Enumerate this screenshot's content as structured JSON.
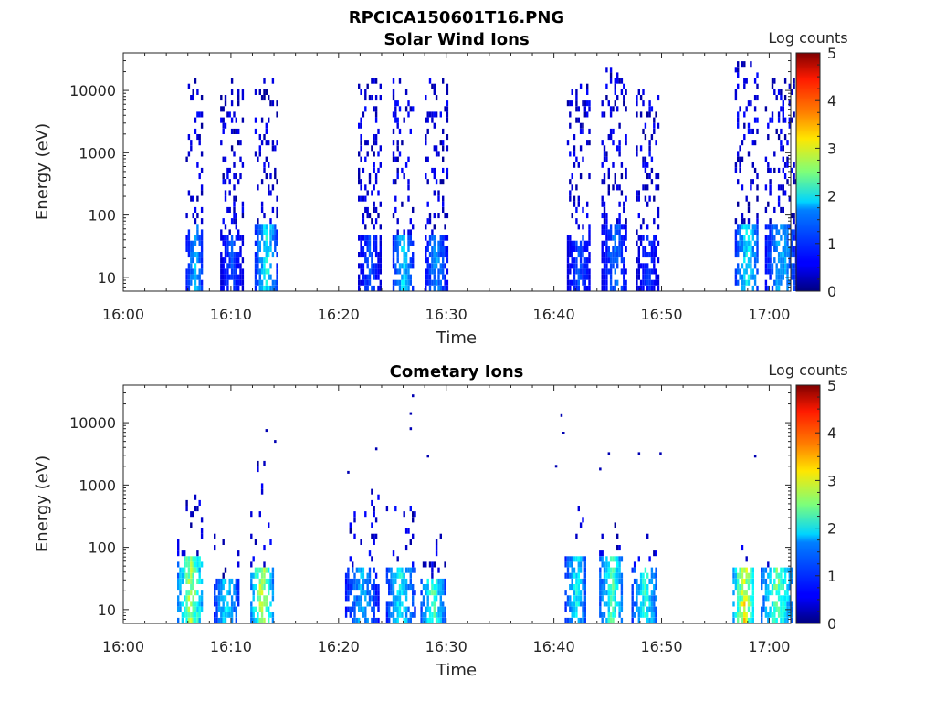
{
  "figure": {
    "title": "RPCICA150601T16.PNG"
  },
  "colors": {
    "colormap": "jet",
    "background": "#ffffff",
    "axis": "#262626"
  },
  "chart_data": [
    {
      "type": "heatmap",
      "title": "Solar Wind Ions",
      "xlabel": "Time",
      "ylabel": "Energy (eV)",
      "yscale": "log",
      "xlim": [
        "16:00",
        "17:02"
      ],
      "ylim": [
        6,
        40000
      ],
      "x_ticks": [
        "16:00",
        "16:10",
        "16:20",
        "16:30",
        "16:40",
        "16:50",
        "17:00"
      ],
      "y_ticks": [
        "10",
        "100",
        "1000",
        "10000"
      ],
      "colorbar": {
        "label": "Log counts",
        "min": 0,
        "max": 5,
        "ticks": [
          "0",
          "1",
          "2",
          "3",
          "4",
          "5"
        ]
      },
      "bursts": [
        {
          "start": "16:05.8",
          "end": "16:07.4",
          "emax": 15000,
          "core_emax": 60,
          "peak_log": 1.8
        },
        {
          "start": "16:09.0",
          "end": "16:11.0",
          "emax": 15000,
          "core_emax": 40,
          "peak_log": 1.2
        },
        {
          "start": "16:12.2",
          "end": "16:14.2",
          "emax": 15000,
          "core_emax": 60,
          "peak_log": 2.2
        },
        {
          "start": "16:21.8",
          "end": "16:23.8",
          "emax": 15000,
          "core_emax": 40,
          "peak_log": 1.2
        },
        {
          "start": "16:25.0",
          "end": "16:26.8",
          "emax": 15000,
          "core_emax": 40,
          "peak_log": 2.0
        },
        {
          "start": "16:28.0",
          "end": "16:30.0",
          "emax": 15000,
          "core_emax": 40,
          "peak_log": 1.6
        },
        {
          "start": "16:41.2",
          "end": "16:43.4",
          "emax": 12000,
          "core_emax": 40,
          "peak_log": 1.2
        },
        {
          "start": "16:44.4",
          "end": "16:46.8",
          "emax": 20000,
          "core_emax": 60,
          "peak_log": 1.4
        },
        {
          "start": "16:47.6",
          "end": "16:49.8",
          "emax": 10000,
          "core_emax": 40,
          "peak_log": 1.0
        },
        {
          "start": "16:56.8",
          "end": "16:59.0",
          "emax": 25000,
          "core_emax": 60,
          "peak_log": 2.2
        },
        {
          "start": "16:59.6",
          "end": "17:02.5",
          "emax": 15000,
          "core_emax": 60,
          "peak_log": 1.8
        }
      ]
    },
    {
      "type": "heatmap",
      "title": "Cometary Ions",
      "xlabel": "Time",
      "ylabel": "Energy (eV)",
      "yscale": "log",
      "xlim": [
        "16:00",
        "17:02"
      ],
      "ylim": [
        6,
        40000
      ],
      "x_ticks": [
        "16:00",
        "16:10",
        "16:20",
        "16:30",
        "16:40",
        "16:50",
        "17:00"
      ],
      "y_ticks": [
        "10",
        "100",
        "1000",
        "10000"
      ],
      "colorbar": {
        "label": "Log counts",
        "min": 0,
        "max": 5,
        "ticks": [
          "0",
          "1",
          "2",
          "3",
          "4",
          "5"
        ]
      },
      "bursts": [
        {
          "start": "16:05.0",
          "end": "16:07.4",
          "emax": 700,
          "core_emax": 60,
          "peak_log": 3.2
        },
        {
          "start": "16:08.4",
          "end": "16:10.6",
          "emax": 150,
          "core_emax": 30,
          "peak_log": 2.2
        },
        {
          "start": "16:11.8",
          "end": "16:13.8",
          "emax": 2000,
          "core_emax": 40,
          "peak_log": 3.4
        },
        {
          "start": "16:20.6",
          "end": "16:23.6",
          "emax": 800,
          "core_emax": 40,
          "peak_log": 1.8
        },
        {
          "start": "16:24.4",
          "end": "16:27.0",
          "emax": 400,
          "core_emax": 40,
          "peak_log": 2.2
        },
        {
          "start": "16:27.6",
          "end": "16:29.8",
          "emax": 150,
          "core_emax": 30,
          "peak_log": 2.6
        },
        {
          "start": "16:41.0",
          "end": "16:43.0",
          "emax": 400,
          "core_emax": 60,
          "peak_log": 2.2
        },
        {
          "start": "16:44.2",
          "end": "16:46.4",
          "emax": 300,
          "core_emax": 60,
          "peak_log": 2.6
        },
        {
          "start": "16:47.2",
          "end": "16:49.6",
          "emax": 150,
          "core_emax": 40,
          "peak_log": 2.4
        },
        {
          "start": "16:56.6",
          "end": "16:58.6",
          "emax": 100,
          "core_emax": 40,
          "peak_log": 3.6
        },
        {
          "start": "16:59.2",
          "end": "17:02.2",
          "emax": 100,
          "core_emax": 40,
          "peak_log": 2.8
        }
      ],
      "outliers": [
        {
          "t": "16:26.8",
          "e": 27000
        },
        {
          "t": "16:26.6",
          "e": 14000
        },
        {
          "t": "16:26.6",
          "e": 8000
        },
        {
          "t": "16:13.2",
          "e": 7500
        },
        {
          "t": "16:14.0",
          "e": 5000
        },
        {
          "t": "16:28.2",
          "e": 2900
        },
        {
          "t": "16:23.4",
          "e": 3800
        },
        {
          "t": "16:40.6",
          "e": 13000
        },
        {
          "t": "16:40.8",
          "e": 6800
        },
        {
          "t": "16:40.1",
          "e": 2000
        },
        {
          "t": "16:45.0",
          "e": 3200
        },
        {
          "t": "16:47.8",
          "e": 3200
        },
        {
          "t": "16:49.8",
          "e": 3200
        },
        {
          "t": "16:58.6",
          "e": 2900
        },
        {
          "t": "16:44.2",
          "e": 1800
        },
        {
          "t": "16:20.8",
          "e": 1600
        }
      ]
    }
  ]
}
